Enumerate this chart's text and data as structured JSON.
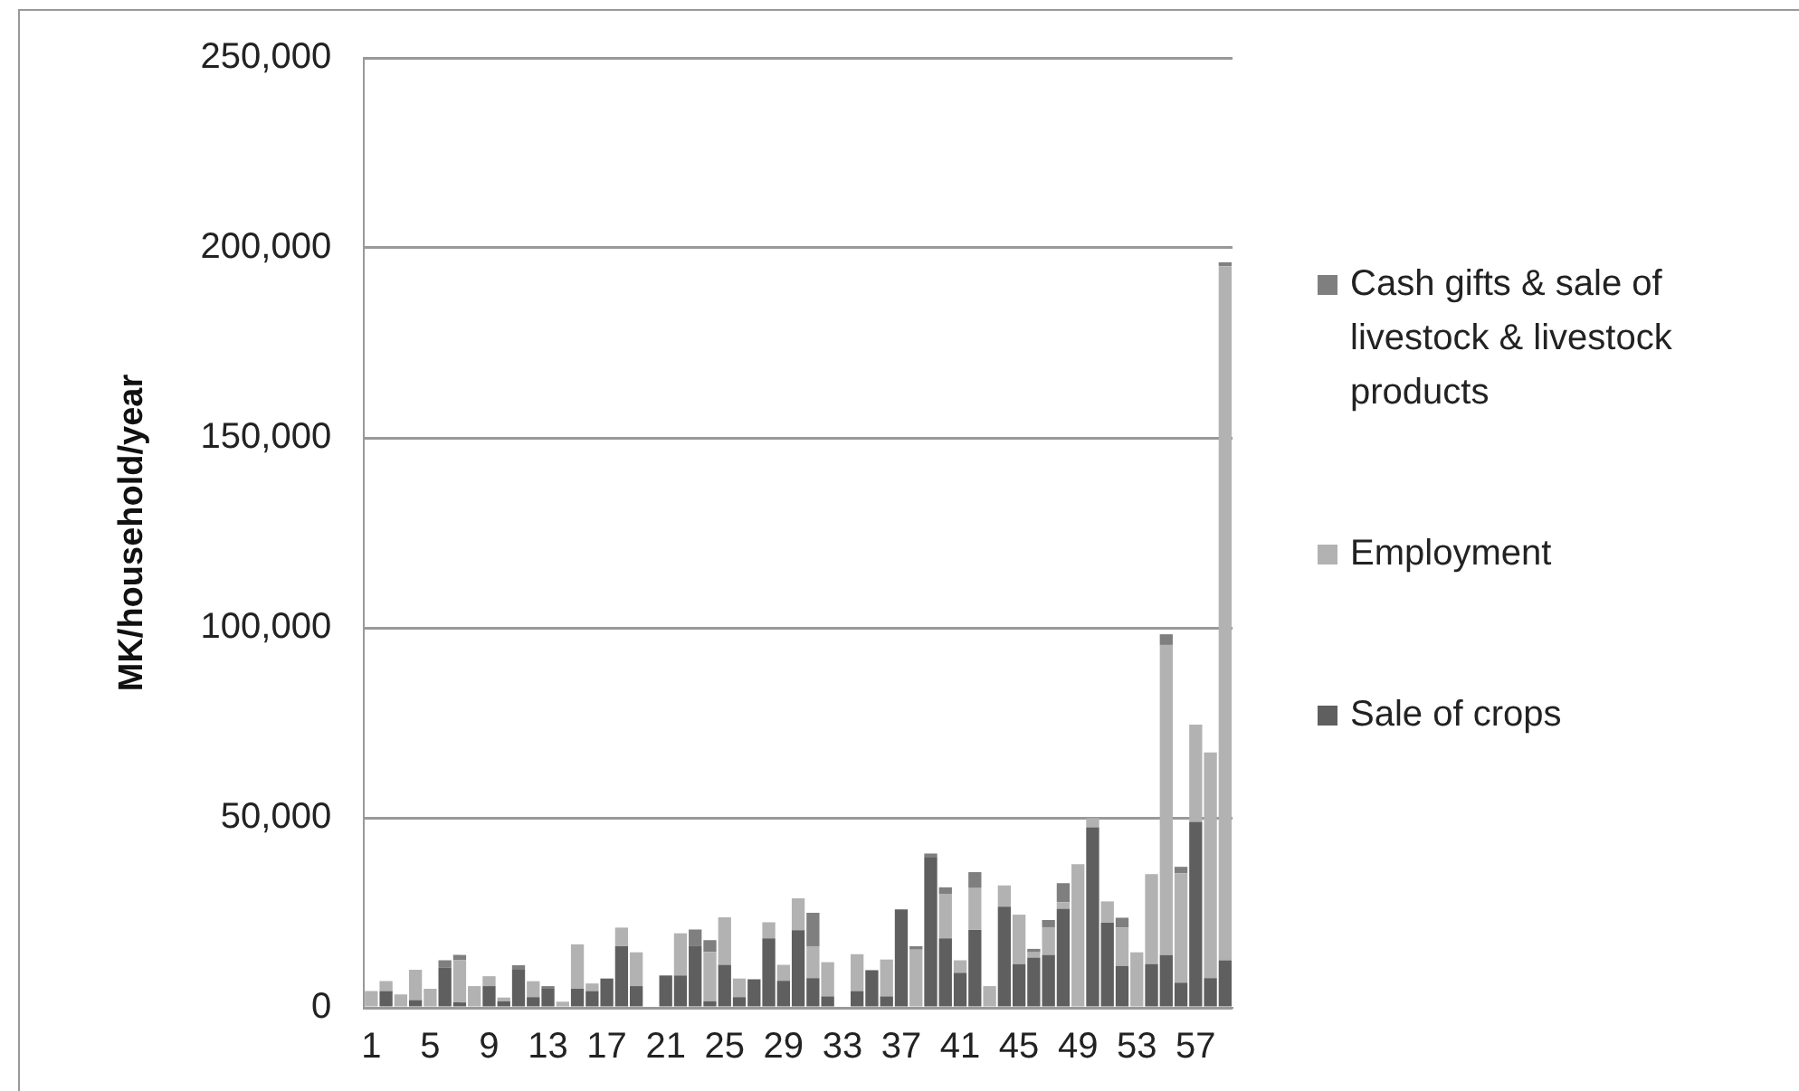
{
  "chart_data": {
    "type": "bar",
    "stacked": true,
    "ylabel": "MK/household/year",
    "categories": [
      "1",
      null,
      null,
      null,
      "5",
      null,
      null,
      null,
      "9",
      null,
      null,
      null,
      "13",
      null,
      null,
      null,
      "17",
      null,
      null,
      null,
      "21",
      null,
      null,
      null,
      "25",
      null,
      null,
      null,
      "29",
      null,
      null,
      null,
      "33",
      null,
      null,
      null,
      "37",
      null,
      null,
      null,
      "41",
      null,
      null,
      null,
      "45",
      null,
      null,
      null,
      "49",
      null,
      null,
      null,
      "53",
      null,
      null,
      null,
      "57",
      null,
      null
    ],
    "series": [
      {
        "name": "Sale of crops",
        "color": "#5f5f5f",
        "values": [
          0,
          4400,
          0,
          2000,
          0,
          10600,
          1400,
          0,
          5700,
          1700,
          10000,
          2800,
          5000,
          0,
          5000,
          4400,
          7700,
          16200,
          5700,
          0,
          8500,
          8500,
          16200,
          1700,
          11300,
          2800,
          7500,
          18300,
          7100,
          20400,
          7800,
          3000,
          0,
          4400,
          9900,
          3000,
          25900,
          0,
          39700,
          18300,
          9200,
          20500,
          0,
          26600,
          11500,
          13200,
          13900,
          26100,
          0,
          47500,
          22400,
          11000,
          0,
          11500,
          13900,
          6600,
          48900,
          7800,
          12500
        ]
      },
      {
        "name": "Employment",
        "color": "#b2b2b2",
        "values": [
          4400,
          2600,
          3500,
          8000,
          5000,
          0,
          11100,
          5700,
          2600,
          1000,
          0,
          4200,
          0,
          1600,
          11700,
          2000,
          0,
          4900,
          8900,
          0,
          0,
          11100,
          0,
          13000,
          12500,
          4900,
          0,
          4200,
          4200,
          8400,
          8400,
          9000,
          0,
          9700,
          0,
          9700,
          0,
          15300,
          0,
          11700,
          3300,
          11000,
          5700,
          5600,
          13000,
          1400,
          7300,
          1700,
          37800,
          2400,
          5600,
          10100,
          14600,
          23700,
          81600,
          28800,
          25600,
          59400,
          182700
        ]
      },
      {
        "name": "Cash gifts & sale of livestock & livestock products",
        "color": "#7f7f7f",
        "values": [
          0,
          0,
          0,
          0,
          0,
          1900,
          1400,
          0,
          0,
          0,
          1200,
          0,
          700,
          0,
          0,
          0,
          0,
          0,
          0,
          0,
          0,
          0,
          4400,
          3100,
          0,
          0,
          0,
          0,
          0,
          0,
          8800,
          0,
          0,
          0,
          0,
          0,
          0,
          900,
          900,
          1700,
          0,
          4200,
          0,
          0,
          0,
          900,
          1900,
          5000,
          0,
          0,
          0,
          2600,
          0,
          0,
          2800,
          1700,
          0,
          0,
          1000
        ]
      }
    ],
    "ylim": [
      0,
      250000
    ],
    "yticks": [
      {
        "value": 0,
        "label": "0"
      },
      {
        "value": 50000,
        "label": "50,000"
      },
      {
        "value": 100000,
        "label": "100,000"
      },
      {
        "value": 150000,
        "label": "150,000"
      },
      {
        "value": 200000,
        "label": "200,000"
      },
      {
        "value": 250000,
        "label": "250,000"
      }
    ],
    "grid": "y",
    "legend": "right"
  }
}
